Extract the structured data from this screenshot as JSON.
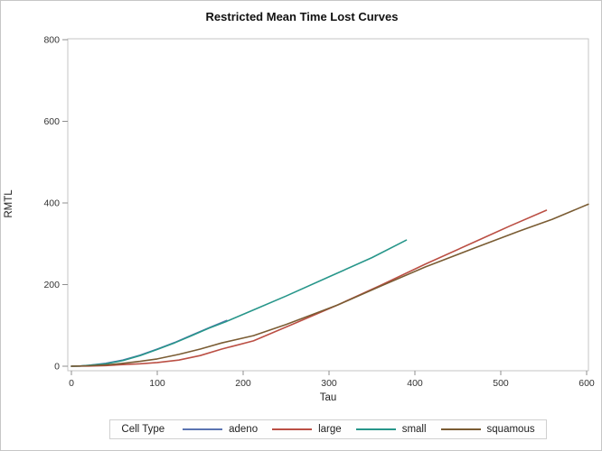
{
  "title": "Restricted Mean Time Lost Curves",
  "legend": {
    "title": "Cell Type",
    "items": [
      {
        "label": "adeno",
        "color": "#5b74b2"
      },
      {
        "label": "large",
        "color": "#bb4f44"
      },
      {
        "label": "small",
        "color": "#27968a"
      },
      {
        "label": "squamous",
        "color": "#7a5c33"
      }
    ]
  },
  "colors": {
    "frame": "#c6c6c6",
    "tick": "#8f8f8f",
    "tick_label": "#333333",
    "background": "#ffffff"
  },
  "chart_data": {
    "type": "line",
    "title": "Restricted Mean Time Lost Curves",
    "xlabel": "Tau",
    "ylabel": "RMTL",
    "xlim": [
      0,
      620
    ],
    "ylim": [
      0,
      800
    ],
    "x_ticks": [
      0,
      100,
      200,
      300,
      400,
      500,
      600
    ],
    "y_ticks": [
      0,
      200,
      400,
      600,
      800
    ],
    "grid": false,
    "legend_position": "bottom",
    "series": [
      {
        "name": "adeno",
        "color": "#5b74b2",
        "points": [
          [
            0,
            0
          ],
          [
            10,
            0.5
          ],
          [
            20,
            2
          ],
          [
            40,
            7
          ],
          [
            60,
            15
          ],
          [
            80,
            27
          ],
          [
            100,
            42
          ],
          [
            120,
            58
          ],
          [
            140,
            76
          ],
          [
            160,
            94
          ],
          [
            181,
            112
          ]
        ]
      },
      {
        "name": "large",
        "color": "#bb4f44",
        "points": [
          [
            0,
            0
          ],
          [
            20,
            0.5
          ],
          [
            40,
            1.5
          ],
          [
            60,
            4
          ],
          [
            80,
            6
          ],
          [
            100,
            9
          ],
          [
            125,
            15
          ],
          [
            150,
            26
          ],
          [
            175,
            42
          ],
          [
            212,
            62
          ],
          [
            260,
            105
          ],
          [
            310,
            150
          ],
          [
            360,
            198
          ],
          [
            412,
            250
          ],
          [
            470,
            305
          ],
          [
            510,
            343
          ],
          [
            553,
            382
          ]
        ]
      },
      {
        "name": "small",
        "color": "#27968a",
        "points": [
          [
            0,
            0
          ],
          [
            10,
            0.5
          ],
          [
            20,
            2
          ],
          [
            40,
            6
          ],
          [
            60,
            14
          ],
          [
            80,
            26
          ],
          [
            100,
            41
          ],
          [
            120,
            57
          ],
          [
            140,
            75
          ],
          [
            160,
            93
          ],
          [
            181,
            110
          ],
          [
            212,
            138
          ],
          [
            250,
            172
          ],
          [
            300,
            219
          ],
          [
            350,
            266
          ],
          [
            390,
            309
          ]
        ]
      },
      {
        "name": "squamous",
        "color": "#7a5c33",
        "points": [
          [
            0,
            0
          ],
          [
            20,
            1
          ],
          [
            40,
            3
          ],
          [
            60,
            7
          ],
          [
            80,
            12
          ],
          [
            100,
            18
          ],
          [
            125,
            29
          ],
          [
            150,
            42
          ],
          [
            175,
            57
          ],
          [
            212,
            75
          ],
          [
            250,
            102
          ],
          [
            310,
            150
          ],
          [
            360,
            196
          ],
          [
            412,
            243
          ],
          [
            470,
            290
          ],
          [
            520,
            330
          ],
          [
            560,
            360
          ],
          [
            602,
            397
          ]
        ]
      }
    ]
  }
}
